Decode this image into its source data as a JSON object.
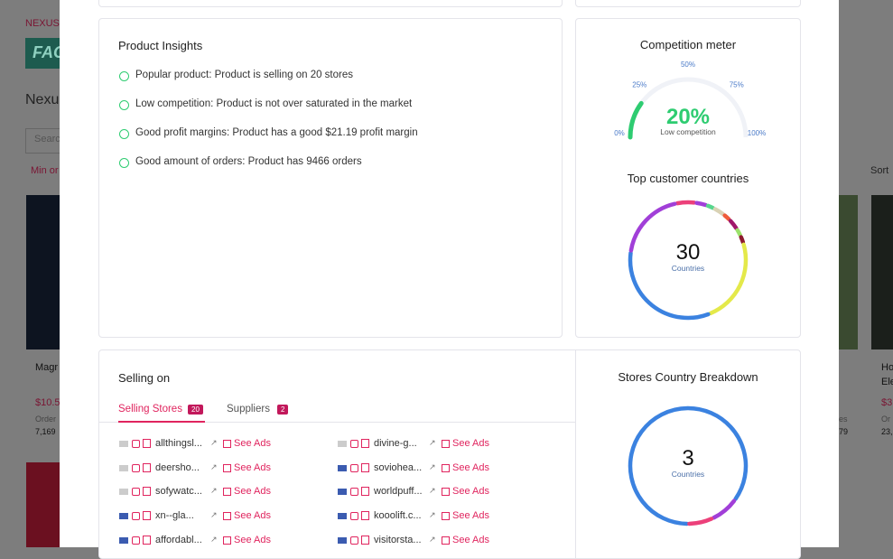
{
  "background": {
    "brand": "NEXUS I",
    "logo": "FAC",
    "heading": "Nexu",
    "search": "Searc",
    "filter": "Min or",
    "sort": "Sort",
    "cards": [
      {
        "title": "Magr",
        "price": "$10.5",
        "orders_label": "Order",
        "orders": "7,169"
      },
      {
        "title": "Ho",
        "title2": "Ele",
        "price": "$3",
        "orders_label": "Or",
        "orders": "23,"
      }
    ],
    "fragments": [
      "es",
      "79"
    ]
  },
  "insights": {
    "title": "Product Insights",
    "items": [
      "Popular product: Product is selling on 20 stores",
      "Low competition: Product is not over saturated in the market",
      "Good profit margins: Product has a good $21.19 profit margin",
      "Good amount of orders: Product has 9466 orders"
    ]
  },
  "competition": {
    "title": "Competition meter",
    "value": 20,
    "value_label": "20%",
    "caption": "Low competition",
    "range": [
      0,
      100
    ],
    "ticks": [
      {
        "value": 0,
        "label": "0%"
      },
      {
        "value": 25,
        "label": "25%"
      },
      {
        "value": 50,
        "label": "50%"
      },
      {
        "value": 75,
        "label": "75%"
      },
      {
        "value": 100,
        "label": "100%"
      }
    ],
    "color": "#2ecc71"
  },
  "top_countries": {
    "title": "Top customer countries",
    "total": "30",
    "unit": "Countries",
    "start_angle": -12,
    "segments": [
      {
        "color": "#ec407a",
        "value": 5
      },
      {
        "color": "#a13fd8",
        "value": 3
      },
      {
        "color": "#57d68d",
        "value": 2
      },
      {
        "color": "#d9d2b5",
        "value": 3
      },
      {
        "color": "#ef5b3a",
        "value": 2
      },
      {
        "color": "#a0186b",
        "value": 3
      },
      {
        "color": "#9be26b",
        "value": 2
      },
      {
        "color": "#8e1b2f",
        "value": 2
      },
      {
        "color": "#e4e94a",
        "value": 22
      },
      {
        "color": "#3b82e0",
        "value": 31
      },
      {
        "color": "#a13fd8",
        "value": 18
      }
    ]
  },
  "selling": {
    "title": "Selling on",
    "tabs": [
      {
        "label": "Selling Stores",
        "count": "20"
      },
      {
        "label": "Suppliers",
        "count": "2"
      }
    ],
    "action": "See Ads",
    "stores": [
      [
        "allthingsl...",
        "divine-g..."
      ],
      [
        "deersho...",
        "soviohea..."
      ],
      [
        "sofywatc...",
        "worldpuff..."
      ],
      [
        "xn--gla...",
        "kooolift.c..."
      ],
      [
        "affordabl...",
        "visitorsta..."
      ]
    ]
  },
  "store_breakdown": {
    "title": "Stores Country Breakdown",
    "total": "3",
    "unit": "Countries",
    "start_angle": 180,
    "segments": [
      {
        "color": "#3b82e0",
        "value": 85
      },
      {
        "color": "#a13fd8",
        "value": 8
      },
      {
        "color": "#ec407a",
        "value": 7
      }
    ]
  }
}
